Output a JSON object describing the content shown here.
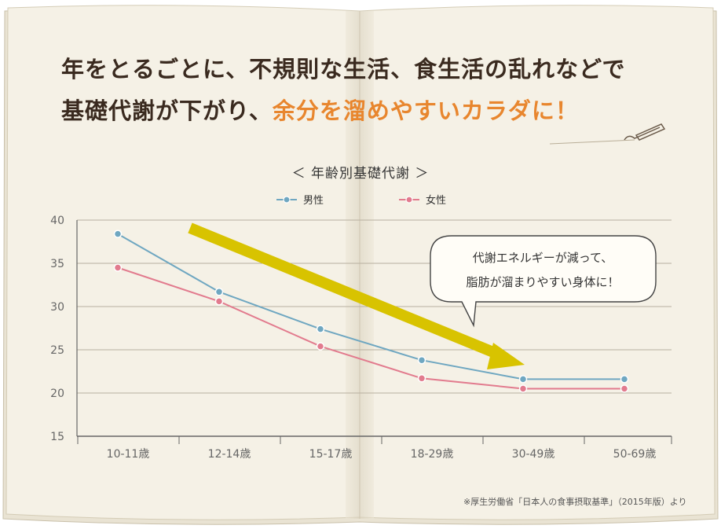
{
  "headline": {
    "line1": "年をとるごとに、不規則な生活、食生活の乱れなどで",
    "line2_prefix": "基礎代謝が下がり、",
    "line2_accent": "余分を溜めやすいカラダに！"
  },
  "chart_data": {
    "type": "line",
    "title": "＜ 年齢別基礎代謝 ＞",
    "categories": [
      "10-11歳",
      "12-14歳",
      "15-17歳",
      "18-29歳",
      "30-49歳",
      "50-69歳"
    ],
    "series": [
      {
        "name": "男性",
        "values": [
          38.4,
          31.7,
          27.4,
          23.8,
          21.6,
          21.6
        ],
        "color": "#6fa7c1"
      },
      {
        "name": "女性",
        "values": [
          34.5,
          30.6,
          25.4,
          21.7,
          20.5,
          20.5
        ],
        "color": "#e27b8e"
      }
    ],
    "yticks": [
      15,
      20,
      25,
      30,
      35,
      40
    ],
    "ylim": [
      15,
      40
    ],
    "grid": true,
    "legend": "top",
    "annotation": {
      "line1": "代謝エネルギーが減って、",
      "line2": "脂肪が溜まりやすい身体に！"
    },
    "arrow_color": "#d8c300"
  },
  "source": "※厚生労働省「日本人の食事摂取基準」（2015年版）より"
}
